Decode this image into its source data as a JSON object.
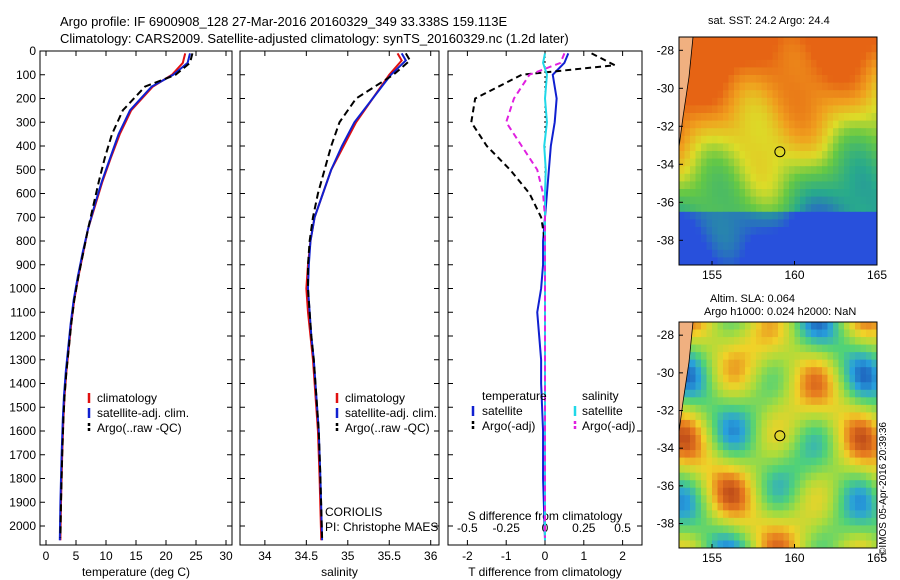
{
  "header": {
    "line1": "Argo profile: IF 6900908_128 27-Mar-2016 20160329_349 33.338S 159.113E",
    "line2": "Climatology: CARS2009. Satellite-adjusted climatology: synTS_20160329.nc (1.2d later)"
  },
  "stamp": "©IMOS 05-Apr-2016 20:39:36",
  "colors": {
    "climatology": "#e01010",
    "satellite": "#1020d0",
    "argo": "#000000",
    "sal_satellite": "#20d8e8",
    "sal_argo": "#e020e0"
  },
  "chart_data": [
    {
      "type": "line",
      "id": "temperature",
      "xlabel": "temperature (deg C)",
      "xlim": [
        -1,
        31
      ],
      "xticks": [
        0,
        5,
        10,
        15,
        20,
        25,
        30
      ],
      "ylim": [
        2080,
        0
      ],
      "yticks": [
        0,
        100,
        200,
        300,
        400,
        500,
        600,
        700,
        800,
        900,
        1000,
        1100,
        1200,
        1300,
        1400,
        1500,
        1600,
        1700,
        1800,
        1900,
        2000
      ],
      "legend": [
        "climatology",
        "satellite-adj. clim.",
        "Argo(..raw -QC)"
      ],
      "series": [
        {
          "name": "climatology",
          "x": [
            23.2,
            22.8,
            21.0,
            17.8,
            14.2,
            12.3,
            10.8,
            9.4,
            8.2,
            7.0,
            6.2,
            5.4,
            4.7,
            4.2,
            3.8,
            3.4,
            3.1,
            2.9,
            2.7,
            2.5,
            2.4
          ],
          "y": [
            10,
            50,
            100,
            150,
            250,
            350,
            450,
            550,
            650,
            750,
            850,
            950,
            1050,
            1150,
            1250,
            1350,
            1450,
            1550,
            1700,
            1900,
            2060
          ]
        },
        {
          "name": "satellite-adj. clim.",
          "x": [
            24.0,
            23.6,
            21.2,
            17.6,
            14.0,
            12.1,
            10.7,
            9.3,
            8.1,
            7.0,
            6.1,
            5.3,
            4.6,
            4.1,
            3.7,
            3.3,
            3.0,
            2.8,
            2.6,
            2.4,
            2.3
          ],
          "y": [
            10,
            50,
            100,
            150,
            250,
            350,
            450,
            550,
            650,
            750,
            850,
            950,
            1050,
            1150,
            1250,
            1350,
            1450,
            1550,
            1700,
            1900,
            2060
          ]
        },
        {
          "name": "Argo(..raw -QC)",
          "x": [
            24.4,
            24.0,
            21.6,
            16.5,
            12.8,
            11.0,
            9.8,
            8.8,
            7.9,
            7.0,
            6.2,
            5.4,
            4.7,
            4.2,
            3.8,
            3.4,
            3.1,
            2.9,
            2.7,
            2.5,
            2.4
          ],
          "y": [
            10,
            50,
            100,
            150,
            250,
            350,
            450,
            550,
            650,
            750,
            850,
            950,
            1050,
            1150,
            1250,
            1350,
            1450,
            1550,
            1700,
            1900,
            2050
          ]
        }
      ]
    },
    {
      "type": "line",
      "id": "salinity",
      "xlabel": "salinity",
      "xlim": [
        33.7,
        36.1
      ],
      "xticks": [
        34,
        34.5,
        35,
        35.5,
        36
      ],
      "ylim": [
        2080,
        0
      ],
      "legend": [
        "climatology",
        "satellite-adj. clim.",
        "Argo(..raw -QC)"
      ],
      "annotation": [
        "CORIOLIS",
        "PI: Christophe MAES"
      ],
      "series": [
        {
          "name": "climatology",
          "x": [
            35.6,
            35.65,
            35.5,
            35.3,
            35.1,
            34.95,
            34.8,
            34.7,
            34.6,
            34.55,
            34.52,
            34.5,
            34.52,
            34.55,
            34.58,
            34.6,
            34.62,
            34.64,
            34.66,
            34.68
          ],
          "y": [
            10,
            40,
            100,
            200,
            300,
            400,
            500,
            600,
            700,
            800,
            900,
            1000,
            1100,
            1200,
            1300,
            1400,
            1500,
            1600,
            1800,
            2060
          ]
        },
        {
          "name": "satellite-adj. clim.",
          "x": [
            35.65,
            35.7,
            35.52,
            35.3,
            35.08,
            34.93,
            34.8,
            34.7,
            34.6,
            34.55,
            34.53,
            34.52,
            34.54,
            34.56,
            34.59,
            34.61,
            34.63,
            34.65,
            34.67,
            34.69
          ],
          "y": [
            10,
            40,
            100,
            200,
            300,
            400,
            500,
            600,
            700,
            800,
            900,
            1000,
            1100,
            1200,
            1300,
            1400,
            1500,
            1600,
            1800,
            2060
          ]
        },
        {
          "name": "Argo(..raw -QC)",
          "x": [
            35.7,
            35.75,
            35.55,
            35.1,
            34.9,
            34.8,
            34.72,
            34.64,
            34.58,
            34.54,
            34.52,
            34.52,
            34.54,
            34.56,
            34.59,
            34.61,
            34.63,
            34.65,
            34.67,
            34.69
          ],
          "y": [
            10,
            40,
            100,
            200,
            300,
            400,
            500,
            600,
            700,
            800,
            900,
            1000,
            1100,
            1200,
            1300,
            1400,
            1500,
            1600,
            1800,
            2050
          ]
        }
      ]
    },
    {
      "type": "line",
      "id": "differences",
      "xlabel": "T difference from climatology",
      "xlabel_top": "S difference from climatology",
      "xlim": [
        -2.5,
        2.5
      ],
      "xticks": [
        -2,
        -1,
        0,
        1,
        2
      ],
      "xticks_top": [
        "-0.5",
        "-0.25",
        "0",
        "0.25",
        "0.5"
      ],
      "xticks_top_pos": [
        -2,
        -1,
        0,
        1,
        2
      ],
      "ylim": [
        2080,
        0
      ],
      "legend_left": [
        "temperature",
        "satellite",
        "Argo(-adj)"
      ],
      "legend_right": [
        "salinity",
        "satellite",
        "Argo(-adj)"
      ],
      "series": [
        {
          "name": "T satellite",
          "color_key": "satellite",
          "dash": false,
          "x": [
            0.6,
            0.5,
            0.2,
            0.3,
            0.25,
            0.15,
            0.1,
            0.05,
            0.0,
            -0.05,
            -0.05,
            -0.1,
            -0.2,
            -0.15,
            -0.1,
            -0.1,
            -0.05,
            -0.05,
            0.0
          ],
          "y": [
            10,
            50,
            100,
            200,
            300,
            400,
            500,
            600,
            700,
            800,
            900,
            1000,
            1100,
            1200,
            1300,
            1400,
            1600,
            1800,
            2060
          ]
        },
        {
          "name": "T Argo(-adj)",
          "color_key": "argo",
          "dash": true,
          "x": [
            1.2,
            1.8,
            -0.6,
            -1.8,
            -1.9,
            -1.5,
            -0.9,
            -0.4,
            -0.1,
            0.0,
            0.0,
            0.0,
            0.0,
            0.0,
            0.0,
            0.0,
            0.0,
            0.0,
            0.0
          ],
          "y": [
            10,
            60,
            100,
            200,
            300,
            400,
            500,
            600,
            700,
            800,
            900,
            1000,
            1100,
            1200,
            1300,
            1400,
            1600,
            1800,
            2050
          ]
        },
        {
          "name": "S satellite",
          "color_key": "sal_satellite",
          "dash": false,
          "x": [
            0.0,
            -0.05,
            0.05,
            0.0,
            0.05,
            -0.02,
            0.02,
            0.0,
            0.0,
            0.0,
            0.0,
            0.0,
            0.0,
            0.0,
            0.0,
            0.0,
            0.0,
            0.0,
            0.0
          ],
          "y": [
            10,
            50,
            100,
            200,
            300,
            400,
            500,
            600,
            700,
            800,
            900,
            1000,
            1100,
            1200,
            1300,
            1400,
            1600,
            1800,
            2060
          ]
        },
        {
          "name": "S Argo(-adj)",
          "color_key": "sal_argo",
          "dash": true,
          "x": [
            0.5,
            0.4,
            -0.4,
            -0.8,
            -1.0,
            -0.6,
            -0.2,
            -0.05,
            0.0,
            0.0,
            0.0,
            0.0,
            0.0,
            0.0,
            0.0,
            0.0,
            0.0,
            0.0,
            0.0
          ],
          "y": [
            10,
            50,
            100,
            200,
            300,
            400,
            500,
            600,
            700,
            800,
            900,
            1000,
            1100,
            1200,
            1300,
            1400,
            1600,
            1800,
            2050
          ]
        }
      ]
    },
    {
      "type": "heatmap",
      "id": "sst-map",
      "title": "sat. SST: 24.2 Argo: 24.4",
      "xlim": [
        153,
        165
      ],
      "ylim": [
        -39.3,
        -27.3
      ],
      "xticks": [
        155,
        160,
        165
      ],
      "yticks": [
        -28,
        -30,
        -32,
        -34,
        -36,
        -38
      ],
      "profile_position": [
        159.113,
        -33.338
      ]
    },
    {
      "type": "heatmap",
      "id": "sla-map",
      "title_line1": "Altim. SLA: 0.064",
      "title_line2": "Argo h1000: 0.024 h2000: NaN",
      "xlim": [
        153,
        165
      ],
      "ylim": [
        -39.3,
        -27.3
      ],
      "xticks": [
        155,
        160,
        165
      ],
      "yticks": [
        -28,
        -30,
        -32,
        -34,
        -36,
        -38
      ],
      "profile_position": [
        159.113,
        -33.338
      ]
    }
  ]
}
